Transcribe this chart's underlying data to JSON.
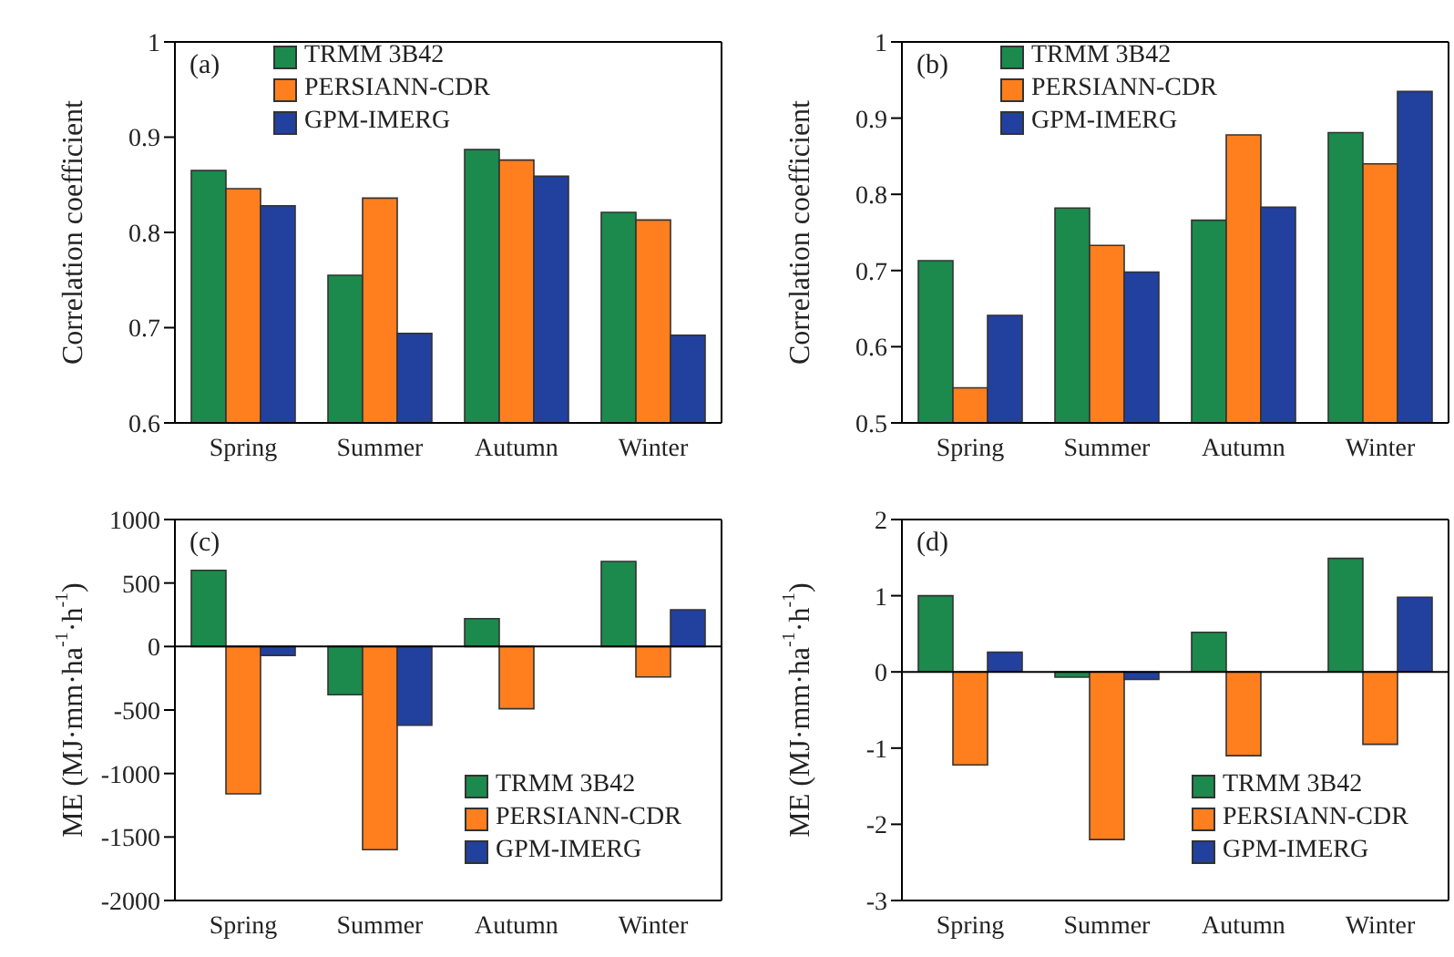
{
  "chart_data": [
    {
      "type": "bar",
      "categories": [
        "Spring",
        "Summer",
        "Autumn",
        "Winter"
      ],
      "ylabel": "Correlation coefficient",
      "ylim": [
        0.6,
        1
      ],
      "yticks": [
        0.6,
        0.7,
        0.8,
        0.9,
        1
      ],
      "legend": "top left",
      "annotations": [
        "(a)"
      ],
      "series": [
        {
          "name": "TRMM 3B42",
          "color": "#1b8a4c",
          "values": [
            0.865,
            0.755,
            0.887,
            0.821
          ]
        },
        {
          "name": "PERSIANN-CDR",
          "color": "#ff7f1e",
          "values": [
            0.846,
            0.836,
            0.876,
            0.813
          ]
        },
        {
          "name": "GPM-IMERG",
          "color": "#22409e",
          "values": [
            0.828,
            0.694,
            0.859,
            0.692
          ]
        }
      ]
    },
    {
      "type": "bar",
      "categories": [
        "Spring",
        "Summer",
        "Autumn",
        "Winter"
      ],
      "ylabel": "Correlation coefficient",
      "ylim": [
        0.5,
        1
      ],
      "yticks": [
        0.5,
        0.6,
        0.7,
        0.8,
        0.9,
        1
      ],
      "legend": "top left",
      "annotations": [
        "(b)"
      ],
      "series": [
        {
          "name": "TRMM 3B42",
          "color": "#1b8a4c",
          "values": [
            0.713,
            0.782,
            0.766,
            0.881
          ]
        },
        {
          "name": "PERSIANN-CDR",
          "color": "#ff7f1e",
          "values": [
            0.546,
            0.733,
            0.878,
            0.84
          ]
        },
        {
          "name": "GPM-IMERG",
          "color": "#22409e",
          "values": [
            0.641,
            0.698,
            0.783,
            0.935
          ]
        }
      ]
    },
    {
      "type": "bar",
      "categories": [
        "Spring",
        "Summer",
        "Autumn",
        "Winter"
      ],
      "ylabel": "ME (MJ·mm·ha$^{-1}$·h$^{-1}$)",
      "ylim": [
        -2000,
        1000
      ],
      "yticks": [
        -2000,
        -1500,
        -1000,
        -500,
        0,
        500,
        1000
      ],
      "legend": "bottom right",
      "annotations": [
        "(c)"
      ],
      "ref_lines": [
        {
          "axis": "y",
          "value": 0
        }
      ],
      "series": [
        {
          "name": "TRMM 3B42",
          "color": "#1b8a4c",
          "values": [
            600,
            -380,
            220,
            670
          ]
        },
        {
          "name": "PERSIANN-CDR",
          "color": "#ff7f1e",
          "values": [
            -1160,
            -1600,
            -490,
            -240
          ]
        },
        {
          "name": "GPM-IMERG",
          "color": "#22409e",
          "values": [
            -70,
            -620,
            null,
            290
          ]
        }
      ]
    },
    {
      "type": "bar",
      "categories": [
        "Spring",
        "Summer",
        "Autumn",
        "Winter"
      ],
      "ylabel": "ME (MJ·mm·ha$^{-1}$·h$^{-1}$)",
      "ylim": [
        -3,
        2
      ],
      "yticks": [
        -3,
        -2,
        -1,
        0,
        1,
        2
      ],
      "legend": "bottom right",
      "annotations": [
        "(d)"
      ],
      "ref_lines": [
        {
          "axis": "y",
          "value": 0
        }
      ],
      "series": [
        {
          "name": "TRMM 3B42",
          "color": "#1b8a4c",
          "values": [
            1.0,
            -0.07,
            0.52,
            1.49
          ]
        },
        {
          "name": "PERSIANN-CDR",
          "color": "#ff7f1e",
          "values": [
            -1.22,
            -2.2,
            -1.1,
            -0.95
          ]
        },
        {
          "name": "GPM-IMERG",
          "color": "#22409e",
          "values": [
            0.26,
            -0.1,
            null,
            0.98
          ]
        }
      ]
    }
  ]
}
